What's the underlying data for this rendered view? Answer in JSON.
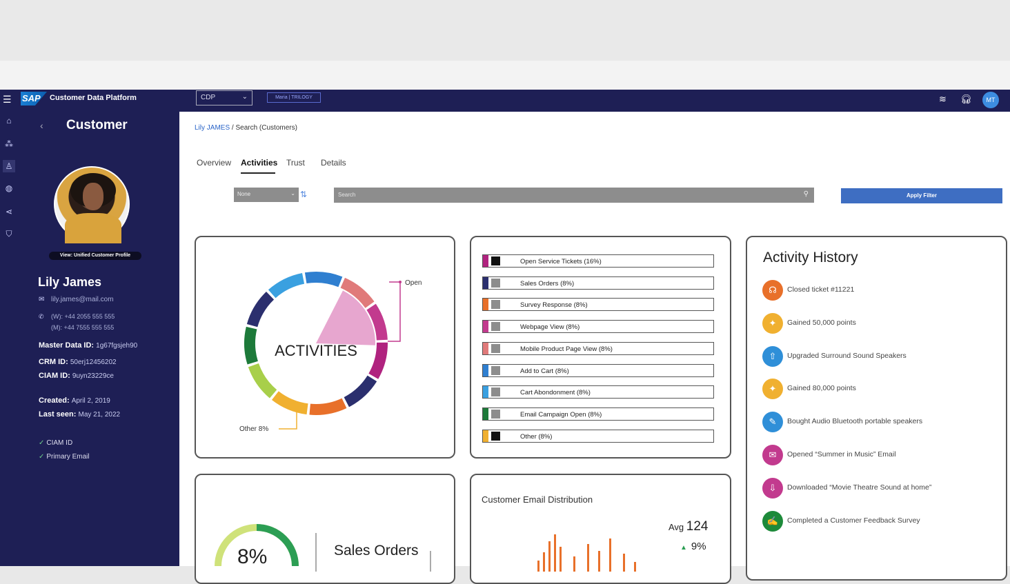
{
  "header": {
    "logo": "SAP",
    "app_title": "Customer Data Platform",
    "tenant_select": "CDP",
    "tenant_badge": "Maria | TRILOGY",
    "user_initials": "MT"
  },
  "profile": {
    "section_title": "Customer",
    "view_profile_label": "View: Unified Customer Profile",
    "name": "Lily James",
    "email": "lily.james@mail.com",
    "phone_work": "(W): +44 2055 555 555",
    "phone_mobile": "(M): +44 7555 555 555",
    "master_data_id_label": "Master Data ID:",
    "master_data_id": "1g67fgsjeh90",
    "crm_id_label": "CRM ID:",
    "crm_id": "50erj12456202",
    "ciam_id_label": "CIAM ID:",
    "ciam_id": "9uyn23229ce",
    "created_label": "Created:",
    "created": "April 2, 2019",
    "last_seen_label": "Last seen:",
    "last_seen": "May 21, 2022",
    "verified": [
      "CIAM ID",
      "Primary Email"
    ]
  },
  "breadcrumb": {
    "link": "Lily JAMES",
    "separator": "/",
    "current": "Search (Customers)"
  },
  "tabs": [
    {
      "label": "Overview"
    },
    {
      "label": "Activities"
    },
    {
      "label": "Trust"
    },
    {
      "label": "Details"
    }
  ],
  "filters": {
    "sort_select": "None",
    "search_placeholder": "Search",
    "apply_label": "Apply Filter"
  },
  "activities_donut": {
    "center_label": "ACTIVITIES",
    "callout_open": "Open",
    "callout_other": "Other 8%"
  },
  "activity_legend": [
    {
      "label": "Open Service Tickets (16%)",
      "color": "#b0237f",
      "swatch": "#111111"
    },
    {
      "label": "Sales Orders (8%)",
      "color": "#2b2f6e",
      "swatch": "#8d8d8d"
    },
    {
      "label": "Survey Response (8%)",
      "color": "#e8702a",
      "swatch": "#8d8d8d"
    },
    {
      "label": "Webpage View (8%)",
      "color": "#c23a8e",
      "swatch": "#8d8d8d"
    },
    {
      "label": "Mobile Product Page View (8%)",
      "color": "#e07a7a",
      "swatch": "#8d8d8d"
    },
    {
      "label": "Add to Cart (8%)",
      "color": "#2f7fd0",
      "swatch": "#8d8d8d"
    },
    {
      "label": "Cart Abondonment (8%)",
      "color": "#3aa0e0",
      "swatch": "#8d8d8d"
    },
    {
      "label": "Email Campaign Open (8%)",
      "color": "#1d7a3a",
      "swatch": "#8d8d8d"
    },
    {
      "label": "Other (8%)",
      "color": "#f0b030",
      "swatch": "#111111"
    }
  ],
  "activity_history": {
    "title": "Activity History",
    "items": [
      {
        "label": "Closed ticket #11221",
        "icon": "headset-icon",
        "color": "#e8702a"
      },
      {
        "label": "Gained 50,000 points",
        "icon": "points-icon",
        "color": "#f0b030"
      },
      {
        "label": "Upgraded Surround Sound Speakers",
        "icon": "upgrade-icon",
        "color": "#2f8fd8"
      },
      {
        "label": "Gained 80,000 points",
        "icon": "points-icon",
        "color": "#f0b030"
      },
      {
        "label": "Bought Audio Bluetooth portable speakers",
        "icon": "purchase-icon",
        "color": "#2f8fd8"
      },
      {
        "label": "Opened “Summer in Music” Email",
        "icon": "email-icon",
        "color": "#c23a8e"
      },
      {
        "label": "Downloaded “Movie Theatre Sound at home”",
        "icon": "download-icon",
        "color": "#c23a8e"
      },
      {
        "label": "Completed a Customer Feedback Survey",
        "icon": "survey-icon",
        "color": "#1d8a3a"
      }
    ]
  },
  "sales_card": {
    "gauge_value": "8%",
    "title": "Sales Orders"
  },
  "email_card": {
    "title": "Customer Email Distribution",
    "avg_label": "Avg",
    "avg_value": "124",
    "change": "9%"
  },
  "chart_data": {
    "type": "pie",
    "categories": [
      "Open Service Tickets",
      "Sales Orders",
      "Survey Response",
      "Webpage View",
      "Mobile Product Page View",
      "Add to Cart",
      "Cart Abondonment",
      "Email Campaign Open",
      "Other"
    ],
    "values": [
      16,
      8,
      8,
      8,
      8,
      8,
      8,
      8,
      8
    ],
    "title": "ACTIVITIES"
  }
}
